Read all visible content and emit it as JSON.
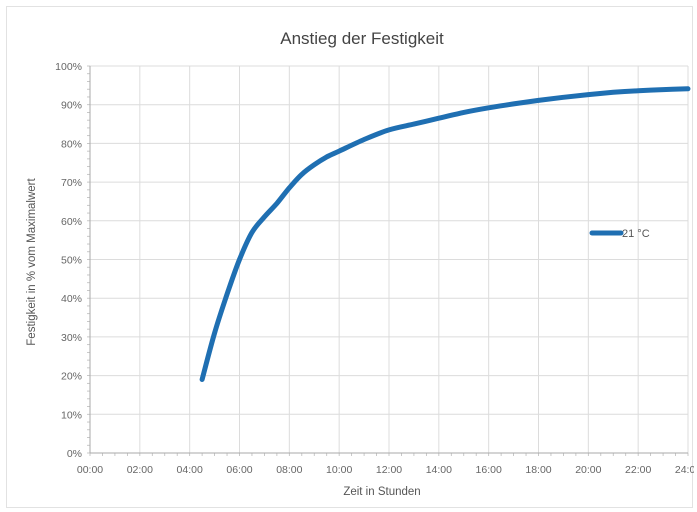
{
  "chart_data": {
    "type": "line",
    "title": "Anstieg der Festigkeit",
    "xlabel": "Zeit in Stunden",
    "ylabel": "Festigkeit in % vom Maximalwert",
    "x_tick_labels": [
      "00:00",
      "02:00",
      "04:00",
      "06:00",
      "08:00",
      "10:00",
      "12:00",
      "14:00",
      "16:00",
      "18:00",
      "20:00",
      "22:00",
      "24:00"
    ],
    "y_tick_labels": [
      "0%",
      "10%",
      "20%",
      "30%",
      "40%",
      "50%",
      "60%",
      "70%",
      "80%",
      "90%",
      "100%"
    ],
    "xlim": [
      0,
      24
    ],
    "ylim": [
      0,
      100
    ],
    "grid": true,
    "legend_position": "right",
    "series": [
      {
        "name": "21 °C",
        "color": "#1f6fb2",
        "x": [
          4.5,
          5.0,
          5.5,
          6.0,
          6.5,
          7.0,
          7.5,
          8.0,
          8.5,
          9.0,
          9.5,
          10.0,
          11.0,
          12.0,
          13.0,
          14.0,
          15.0,
          16.0,
          17.0,
          18.0,
          19.0,
          20.0,
          21.0,
          22.0,
          23.0,
          24.0
        ],
        "y": [
          19,
          31,
          41,
          50,
          57,
          61,
          64.5,
          68.5,
          72,
          74.5,
          76.5,
          78,
          81,
          83.5,
          85,
          86.5,
          88,
          89.2,
          90.2,
          91.1,
          91.9,
          92.6,
          93.2,
          93.6,
          93.9,
          94.1
        ]
      }
    ]
  }
}
